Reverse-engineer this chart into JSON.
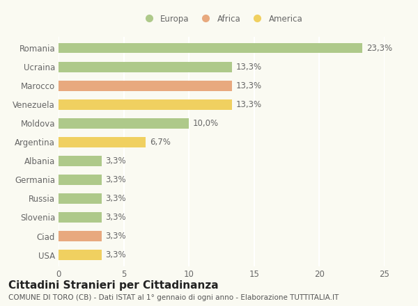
{
  "countries": [
    "Romania",
    "Ucraina",
    "Marocco",
    "Venezuela",
    "Moldova",
    "Argentina",
    "Albania",
    "Germania",
    "Russia",
    "Slovenia",
    "Ciad",
    "USA"
  ],
  "values": [
    23.3,
    13.3,
    13.3,
    13.3,
    10.0,
    6.7,
    3.3,
    3.3,
    3.3,
    3.3,
    3.3,
    3.3
  ],
  "labels": [
    "23,3%",
    "13,3%",
    "13,3%",
    "13,3%",
    "10,0%",
    "6,7%",
    "3,3%",
    "3,3%",
    "3,3%",
    "3,3%",
    "3,3%",
    "3,3%"
  ],
  "colors": [
    "#aec98a",
    "#aec98a",
    "#e8a97e",
    "#f0d060",
    "#aec98a",
    "#f0d060",
    "#aec98a",
    "#aec98a",
    "#aec98a",
    "#aec98a",
    "#e8a97e",
    "#f0d060"
  ],
  "legend_labels": [
    "Europa",
    "Africa",
    "America"
  ],
  "legend_colors": [
    "#aec98a",
    "#e8a97e",
    "#f0d060"
  ],
  "title": "Cittadini Stranieri per Cittadinanza",
  "subtitle": "COMUNE DI TORO (CB) - Dati ISTAT al 1° gennaio di ogni anno - Elaborazione TUTTITALIA.IT",
  "xlim": [
    0,
    25
  ],
  "xticks": [
    0,
    5,
    10,
    15,
    20,
    25
  ],
  "background_color": "#fafaf2",
  "grid_color": "#ffffff",
  "bar_height": 0.55,
  "label_fontsize": 8.5,
  "tick_fontsize": 8.5,
  "title_fontsize": 11,
  "subtitle_fontsize": 7.5
}
